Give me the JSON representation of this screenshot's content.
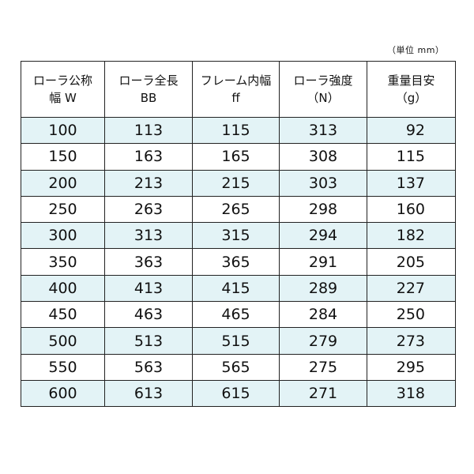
{
  "unit_note": "（単位 mm）",
  "header": [
    {
      "line1": "ローラ公称",
      "line2": "幅 W"
    },
    {
      "line1": "ローラ全長",
      "line2": "BB"
    },
    {
      "line1": "フレーム内幅",
      "line2": "ff"
    },
    {
      "line1": "ローラ強度",
      "line2": "（N）"
    },
    {
      "line1": "重量目安",
      "line2": "（g）"
    }
  ],
  "rows": [
    [
      "100",
      "113",
      "115",
      "313",
      "92"
    ],
    [
      "150",
      "163",
      "165",
      "308",
      "115"
    ],
    [
      "200",
      "213",
      "215",
      "303",
      "137"
    ],
    [
      "250",
      "263",
      "265",
      "298",
      "160"
    ],
    [
      "300",
      "313",
      "315",
      "294",
      "182"
    ],
    [
      "350",
      "363",
      "365",
      "291",
      "205"
    ],
    [
      "400",
      "413",
      "415",
      "289",
      "227"
    ],
    [
      "450",
      "463",
      "465",
      "284",
      "250"
    ],
    [
      "500",
      "513",
      "515",
      "279",
      "273"
    ],
    [
      "550",
      "563",
      "565",
      "275",
      "295"
    ],
    [
      "600",
      "613",
      "615",
      "271",
      "318"
    ]
  ],
  "colors": {
    "stripe": "#e3f3f6",
    "border": "#222222"
  }
}
